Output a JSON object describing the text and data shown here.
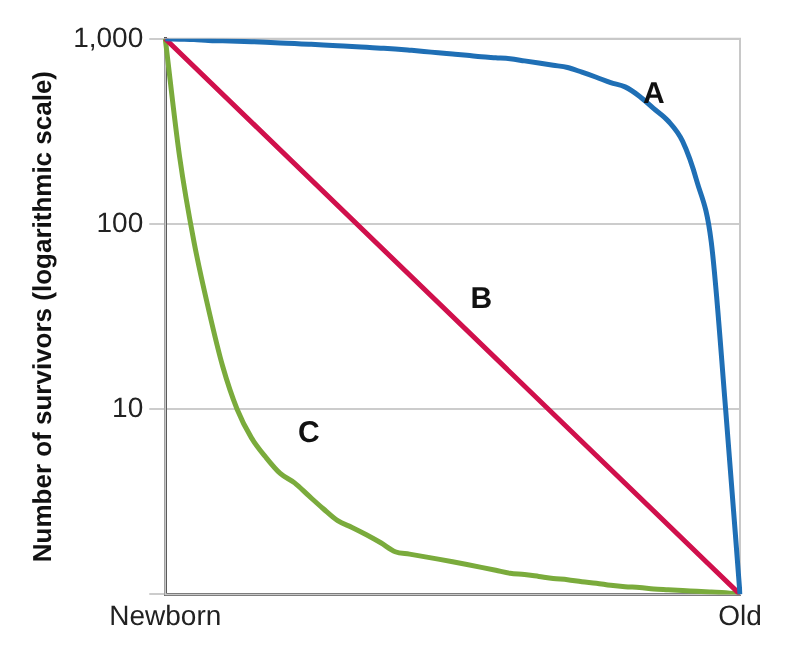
{
  "chart_data": {
    "type": "line",
    "ylabel": "Number of survivors (logarithmic scale)",
    "categories": [
      "Newborn",
      null,
      null,
      null,
      null,
      null,
      null,
      null,
      null,
      null,
      null,
      null,
      null,
      null,
      null,
      null,
      null,
      null,
      null,
      null,
      null,
      null,
      null,
      null,
      null,
      null,
      null,
      null,
      null,
      null,
      null,
      null,
      null,
      null,
      null,
      null,
      null,
      null,
      null,
      null,
      "Old"
    ],
    "ylim": [
      1,
      1000
    ],
    "yticks": [
      {
        "value": 1,
        "label": null
      },
      10,
      100,
      {
        "value": 1000,
        "label": "1,000"
      }
    ],
    "log": "y",
    "grid": "y",
    "marker": "none",
    "line_style": "solid",
    "series": [
      {
        "color": "#1f6fb5",
        "values": [
          1000,
          995,
          990,
          980,
          975,
          970,
          965,
          958,
          950,
          942,
          935,
          927,
          918,
          910,
          900,
          890,
          880,
          868,
          855,
          840,
          828,
          815,
          800,
          790,
          780,
          760,
          740,
          720,
          700,
          660,
          620,
          580,
          550,
          490,
          420,
          360,
          280,
          170,
          80,
          10,
          1
        ]
      },
      {
        "color": "#d0104c",
        "values": [
          1000,
          null,
          null,
          null,
          null,
          null,
          null,
          null,
          null,
          null,
          null,
          null,
          null,
          null,
          null,
          null,
          null,
          null,
          null,
          null,
          null,
          null,
          null,
          null,
          null,
          null,
          null,
          null,
          null,
          null,
          null,
          null,
          null,
          null,
          null,
          null,
          null,
          null,
          null,
          null,
          1
        ]
      },
      {
        "color": "#7aab3c",
        "values": [
          1000,
          230,
          80,
          35,
          17,
          10,
          7,
          5.5,
          4.5,
          4,
          3.4,
          2.9,
          2.5,
          2.3,
          2.1,
          1.9,
          1.7,
          1.65,
          1.6,
          1.55,
          1.5,
          1.45,
          1.4,
          1.35,
          1.3,
          1.28,
          1.25,
          1.22,
          1.2,
          1.17,
          1.15,
          1.12,
          1.1,
          1.09,
          1.07,
          1.06,
          1.05,
          1.04,
          1.03,
          1.02,
          1
        ]
      }
    ],
    "annotations": [
      "A",
      "B",
      "C"
    ]
  }
}
